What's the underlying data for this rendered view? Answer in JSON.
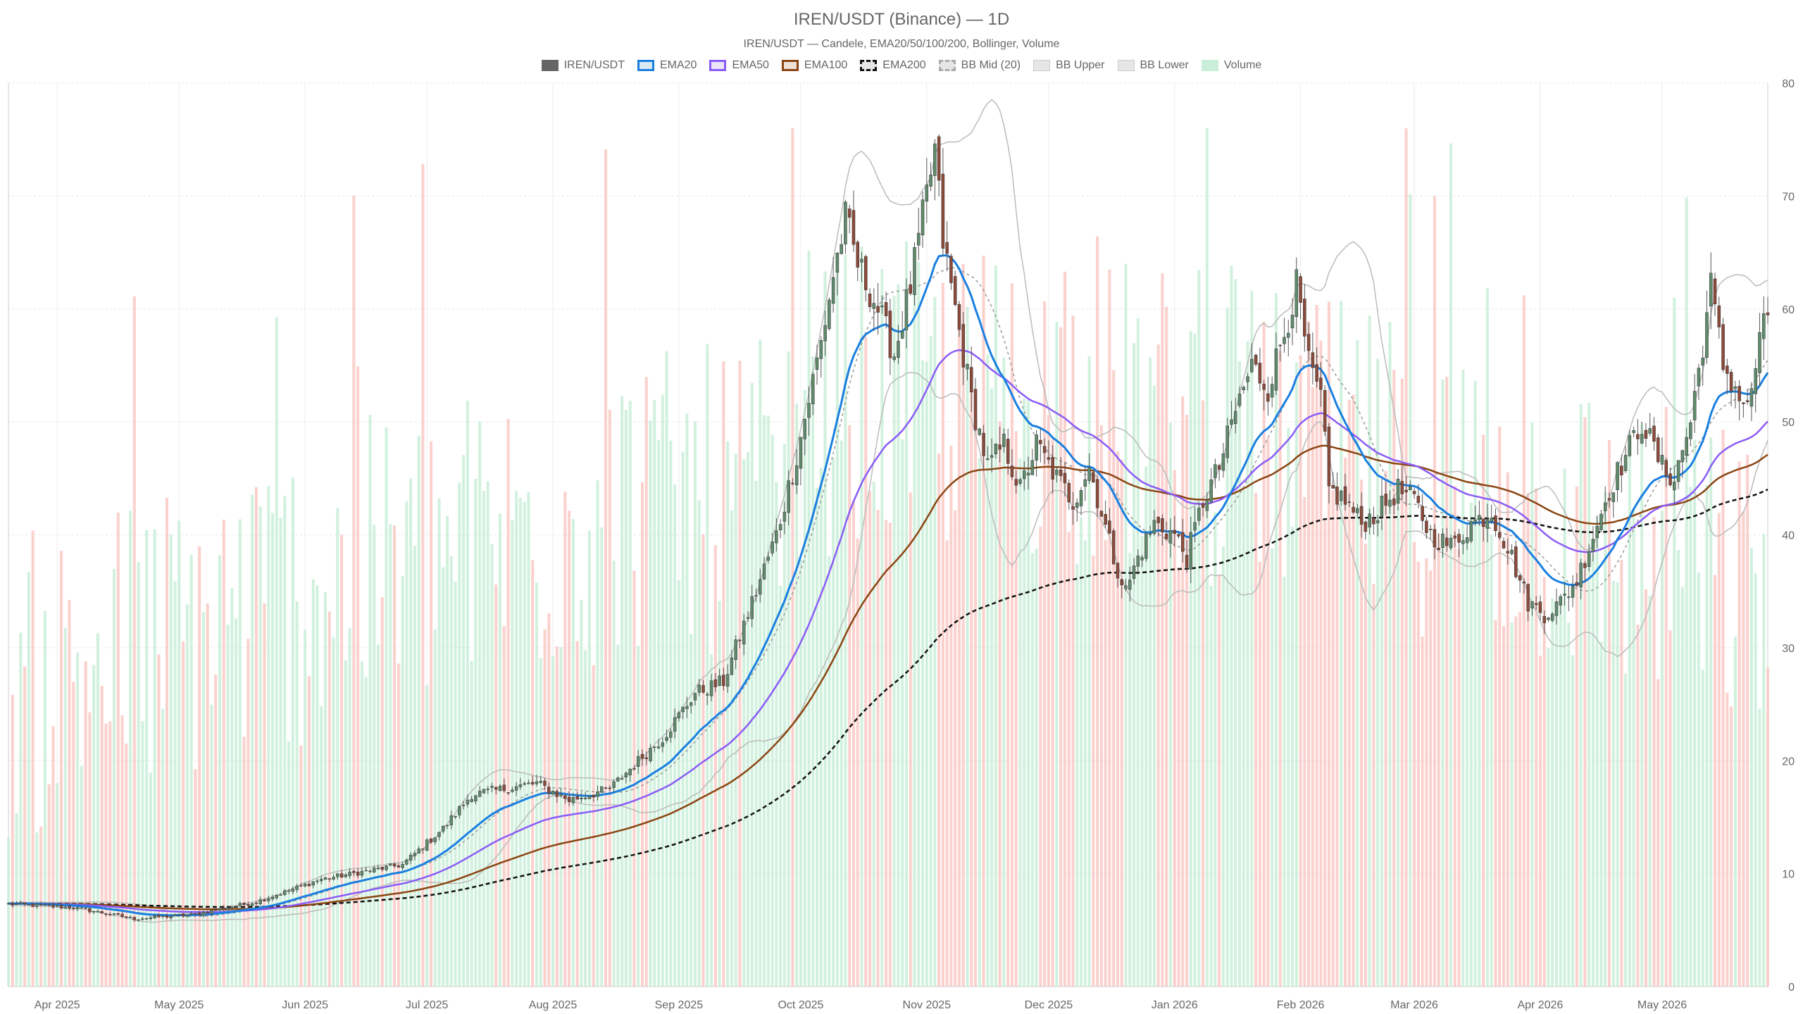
{
  "chart_data": {
    "type": "candlestick",
    "title": "IREN/USDT (Binance) — 1D",
    "subtitle": "IREN/USDT — Candele, EMA20/50/100/200, Bollinger, Volume",
    "legend": [
      {
        "label": "IREN/USDT",
        "color": "#666666",
        "fill": "#666666",
        "dash": false
      },
      {
        "label": "EMA20",
        "color": "#1a7fe0",
        "fill": "#d8e8f5",
        "dash": false
      },
      {
        "label": "EMA50",
        "color": "#8b5cf6",
        "fill": "#ece4fb",
        "dash": false
      },
      {
        "label": "EMA100",
        "color": "#8b4513",
        "fill": "#efe3d8",
        "dash": false
      },
      {
        "label": "EMA200",
        "color": "#111111",
        "fill": "#e6e6e6",
        "dash": true
      },
      {
        "label": "BB Mid (20)",
        "color": "#aaaaaa",
        "fill": "#e6e6e6",
        "dash": true
      },
      {
        "label": "BB Upper",
        "color": "#cccccc",
        "fill": "#e6e6e6",
        "dash": false
      },
      {
        "label": "BB Lower",
        "color": "#cccccc",
        "fill": "#e6e6e6",
        "dash": false
      },
      {
        "label": "Volume",
        "color": "#c9efd8",
        "fill": "#c9efd8",
        "dash": false
      }
    ],
    "y_axis": {
      "position": "right",
      "min": 0,
      "max": 80,
      "ticks": [
        0,
        10,
        20,
        30,
        40,
        50,
        60,
        70,
        80
      ]
    },
    "x_axis": {
      "start_date": "2025-03-20",
      "end_date": "2026-05-27",
      "ticks": [
        {
          "label": "Apr 2025",
          "date": "2025-04-01"
        },
        {
          "label": "May 2025",
          "date": "2025-05-01"
        },
        {
          "label": "Jun 2025",
          "date": "2025-06-01"
        },
        {
          "label": "Jul 2025",
          "date": "2025-07-01"
        },
        {
          "label": "Aug 2025",
          "date": "2025-08-01"
        },
        {
          "label": "Sep 2025",
          "date": "2025-09-01"
        },
        {
          "label": "Oct 2025",
          "date": "2025-10-01"
        },
        {
          "label": "Nov 2025",
          "date": "2025-11-01"
        },
        {
          "label": "Dec 2025",
          "date": "2025-12-01"
        },
        {
          "label": "Jan 2026",
          "date": "2026-01-01"
        },
        {
          "label": "Feb 2026",
          "date": "2026-02-01"
        },
        {
          "label": "Mar 2026",
          "date": "2026-03-01"
        },
        {
          "label": "Apr 2026",
          "date": "2026-04-01"
        },
        {
          "label": "May 2026",
          "date": "2026-05-01"
        }
      ]
    },
    "price_anchors": [
      [
        "2025-03-20",
        7.3
      ],
      [
        "2025-04-05",
        7.0
      ],
      [
        "2025-04-20",
        6.0
      ],
      [
        "2025-05-05",
        6.4
      ],
      [
        "2025-05-20",
        7.5
      ],
      [
        "2025-06-05",
        9.5
      ],
      [
        "2025-06-25",
        10.8
      ],
      [
        "2025-07-05",
        14.0
      ],
      [
        "2025-07-12",
        17.0
      ],
      [
        "2025-07-28",
        18.0
      ],
      [
        "2025-08-05",
        16.5
      ],
      [
        "2025-08-15",
        17.5
      ],
      [
        "2025-08-22",
        20.0
      ],
      [
        "2025-08-28",
        22.0
      ],
      [
        "2025-09-05",
        26.0
      ],
      [
        "2025-09-12",
        27.0
      ],
      [
        "2025-09-18",
        33.0
      ],
      [
        "2025-09-25",
        40.0
      ],
      [
        "2025-09-30",
        47.0
      ],
      [
        "2025-10-03",
        52.0
      ],
      [
        "2025-10-06",
        57.0
      ],
      [
        "2025-10-09",
        63.0
      ],
      [
        "2025-10-12",
        68.0
      ],
      [
        "2025-10-15",
        64.0
      ],
      [
        "2025-10-20",
        60.0
      ],
      [
        "2025-10-24",
        56.0
      ],
      [
        "2025-10-28",
        62.0
      ],
      [
        "2025-11-01",
        70.0
      ],
      [
        "2025-11-03",
        74.0
      ],
      [
        "2025-11-05",
        66.0
      ],
      [
        "2025-11-08",
        60.0
      ],
      [
        "2025-11-12",
        52.0
      ],
      [
        "2025-11-16",
        46.0
      ],
      [
        "2025-11-20",
        48.0
      ],
      [
        "2025-11-24",
        44.0
      ],
      [
        "2025-11-28",
        48.0
      ],
      [
        "2025-12-03",
        45.0
      ],
      [
        "2025-12-07",
        43.0
      ],
      [
        "2025-12-11",
        46.0
      ],
      [
        "2025-12-14",
        42.0
      ],
      [
        "2025-12-17",
        38.0
      ],
      [
        "2025-12-20",
        35.0
      ],
      [
        "2025-12-23",
        38.0
      ],
      [
        "2025-12-27",
        41.0
      ],
      [
        "2026-01-01",
        40.0
      ],
      [
        "2026-01-04",
        38.0
      ],
      [
        "2026-01-08",
        43.0
      ],
      [
        "2026-01-12",
        46.0
      ],
      [
        "2026-01-16",
        51.0
      ],
      [
        "2026-01-20",
        55.0
      ],
      [
        "2026-01-24",
        53.0
      ],
      [
        "2026-01-28",
        58.0
      ],
      [
        "2026-01-31",
        62.0
      ],
      [
        "2026-02-03",
        55.0
      ],
      [
        "2026-02-06",
        52.0
      ],
      [
        "2026-02-08",
        44.0
      ],
      [
        "2026-02-12",
        43.0
      ],
      [
        "2026-02-16",
        41.0
      ],
      [
        "2026-02-20",
        42.0
      ],
      [
        "2026-02-25",
        44.0
      ],
      [
        "2026-03-01",
        43.0
      ],
      [
        "2026-03-05",
        40.0
      ],
      [
        "2026-03-10",
        39.0
      ],
      [
        "2026-03-15",
        41.0
      ],
      [
        "2026-03-20",
        42.0
      ],
      [
        "2026-03-25",
        38.0
      ],
      [
        "2026-03-29",
        34.0
      ],
      [
        "2026-04-02",
        33.0
      ],
      [
        "2026-04-06",
        34.0
      ],
      [
        "2026-04-10",
        36.0
      ],
      [
        "2026-04-14",
        40.0
      ],
      [
        "2026-04-18",
        44.0
      ],
      [
        "2026-04-22",
        47.0
      ],
      [
        "2026-04-26",
        50.0
      ],
      [
        "2026-05-01",
        46.0
      ],
      [
        "2026-05-04",
        45.0
      ],
      [
        "2026-05-08",
        50.0
      ],
      [
        "2026-05-11",
        57.0
      ],
      [
        "2026-05-13",
        62.0
      ],
      [
        "2026-05-16",
        55.0
      ],
      [
        "2026-05-19",
        53.0
      ],
      [
        "2026-05-22",
        51.0
      ],
      [
        "2026-05-25",
        57.0
      ],
      [
        "2026-05-27",
        59.5
      ]
    ],
    "volume_note": "Volume bars on secondary scale (approx.), green = up day, red = down day"
  }
}
